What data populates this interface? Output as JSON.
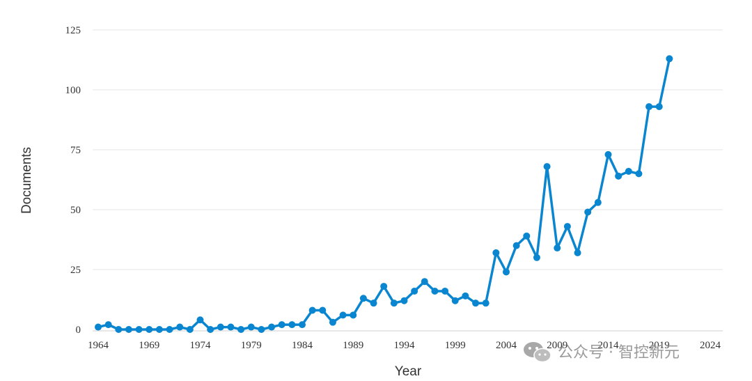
{
  "chart_data": {
    "type": "line",
    "xlabel": "Year",
    "ylabel": "Documents",
    "xlim": [
      1964,
      2024
    ],
    "ylim": [
      0,
      125
    ],
    "x_ticks": [
      1964,
      1969,
      1974,
      1979,
      1984,
      1989,
      1994,
      1999,
      2004,
      2009,
      2014,
      2019,
      2024
    ],
    "y_ticks": [
      0,
      25,
      50,
      75,
      100,
      125
    ],
    "grid": "horizontal",
    "color": "#0a86d0",
    "series": [
      {
        "x": [
          1964,
          1965,
          1966,
          1967,
          1968,
          1969,
          1970,
          1971,
          1972,
          1973,
          1974,
          1975,
          1976,
          1977,
          1978,
          1979,
          1980,
          1981,
          1982,
          1983,
          1984,
          1985,
          1986,
          1987,
          1988,
          1989,
          1990,
          1991,
          1992,
          1993,
          1994,
          1995,
          1996,
          1997,
          1998,
          1999,
          2000,
          2001,
          2002,
          2003,
          2004,
          2005,
          2006,
          2007,
          2008,
          2009,
          2010,
          2011,
          2012,
          2013,
          2014,
          2015,
          2016,
          2017,
          2018,
          2019,
          2020
        ],
        "values": [
          1,
          2,
          0,
          0,
          0,
          0,
          0,
          0,
          1,
          0,
          4,
          0,
          1,
          1,
          0,
          1,
          0,
          1,
          2,
          2,
          2,
          8,
          8,
          3,
          6,
          6,
          13,
          11,
          18,
          11,
          12,
          16,
          20,
          16,
          16,
          12,
          14,
          11,
          11,
          32,
          24,
          35,
          39,
          30,
          68,
          34,
          43,
          32,
          49,
          53,
          73,
          64,
          66,
          65,
          93,
          93,
          113
        ]
      }
    ]
  },
  "watermark": {
    "icon": "wechat-icon",
    "text": "公众号 · 智控新元"
  }
}
